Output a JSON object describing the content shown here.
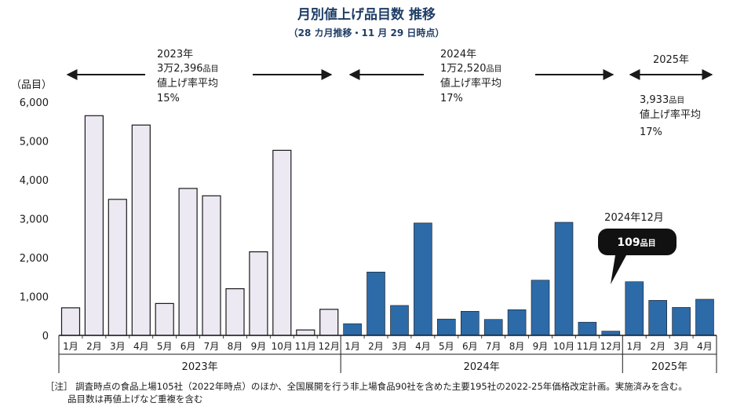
{
  "chart_data": {
    "type": "bar",
    "title": "月別値上げ品目数 推移",
    "subtitle": "（28 カ月推移・11 月 29 日時点）",
    "ylabel": "（品目）",
    "ylim": [
      0,
      6000
    ],
    "yticks": [
      "0",
      "1,000",
      "2,000",
      "3,000",
      "4,000",
      "5,000",
      "6,000"
    ],
    "yticks_values": [
      0,
      1000,
      2000,
      3000,
      4000,
      5000,
      6000
    ],
    "colors": {
      "y2023": "#ece9f2",
      "y2023_edge": "#1a1a1a",
      "y2024": "#2d6aa8",
      "y2025": "#2d6aa8",
      "callout": "#111111"
    },
    "categories": [
      "1月",
      "2月",
      "3月",
      "4月",
      "5月",
      "6月",
      "7月",
      "8月",
      "9月",
      "10月",
      "11月",
      "12月",
      "1月",
      "2月",
      "3月",
      "4月",
      "5月",
      "6月",
      "7月",
      "8月",
      "9月",
      "10月",
      "11月",
      "12月",
      "1月",
      "2月",
      "3月",
      "4月"
    ],
    "groups": [
      {
        "year": "2023年",
        "start": 0,
        "count": 12
      },
      {
        "year": "2024年",
        "start": 12,
        "count": 12
      },
      {
        "year": "2025年",
        "start": 24,
        "count": 4
      }
    ],
    "series": [
      {
        "values": [
          710,
          5650,
          3500,
          5410,
          820,
          3780,
          3590,
          1200,
          2150,
          4760,
          140,
          670,
          300,
          1630,
          770,
          2890,
          420,
          620,
          410,
          660,
          1420,
          2910,
          340,
          109,
          1380,
          900,
          720,
          930
        ]
      }
    ],
    "annotations": {
      "y2023": {
        "year": "2023年",
        "count_prefix": "3万2,396",
        "count_unit": "品目",
        "rate_label": "値上げ率平均",
        "rate_value": "15%"
      },
      "y2024": {
        "year": "2024年",
        "count_prefix": "1万2,520",
        "count_unit": "品目",
        "rate_label": "値上げ率平均",
        "rate_value": "17%"
      },
      "y2025": {
        "year": "2025年",
        "count_prefix": "3,933",
        "count_unit": "品目",
        "rate_label": "値上げ率平均",
        "rate_value": "17%"
      },
      "callout": {
        "label": "2024年12月",
        "value": "109",
        "unit": "品目"
      }
    },
    "notes": [
      "［注］ 調査時点の食品上場105社（2022年時点）のほか、全国展開を行う非上場食品90社を含めた主要195社の2022-25年価格改定計画。実施済みを含む。",
      "品目数は再値上げなど重複を含む"
    ]
  }
}
